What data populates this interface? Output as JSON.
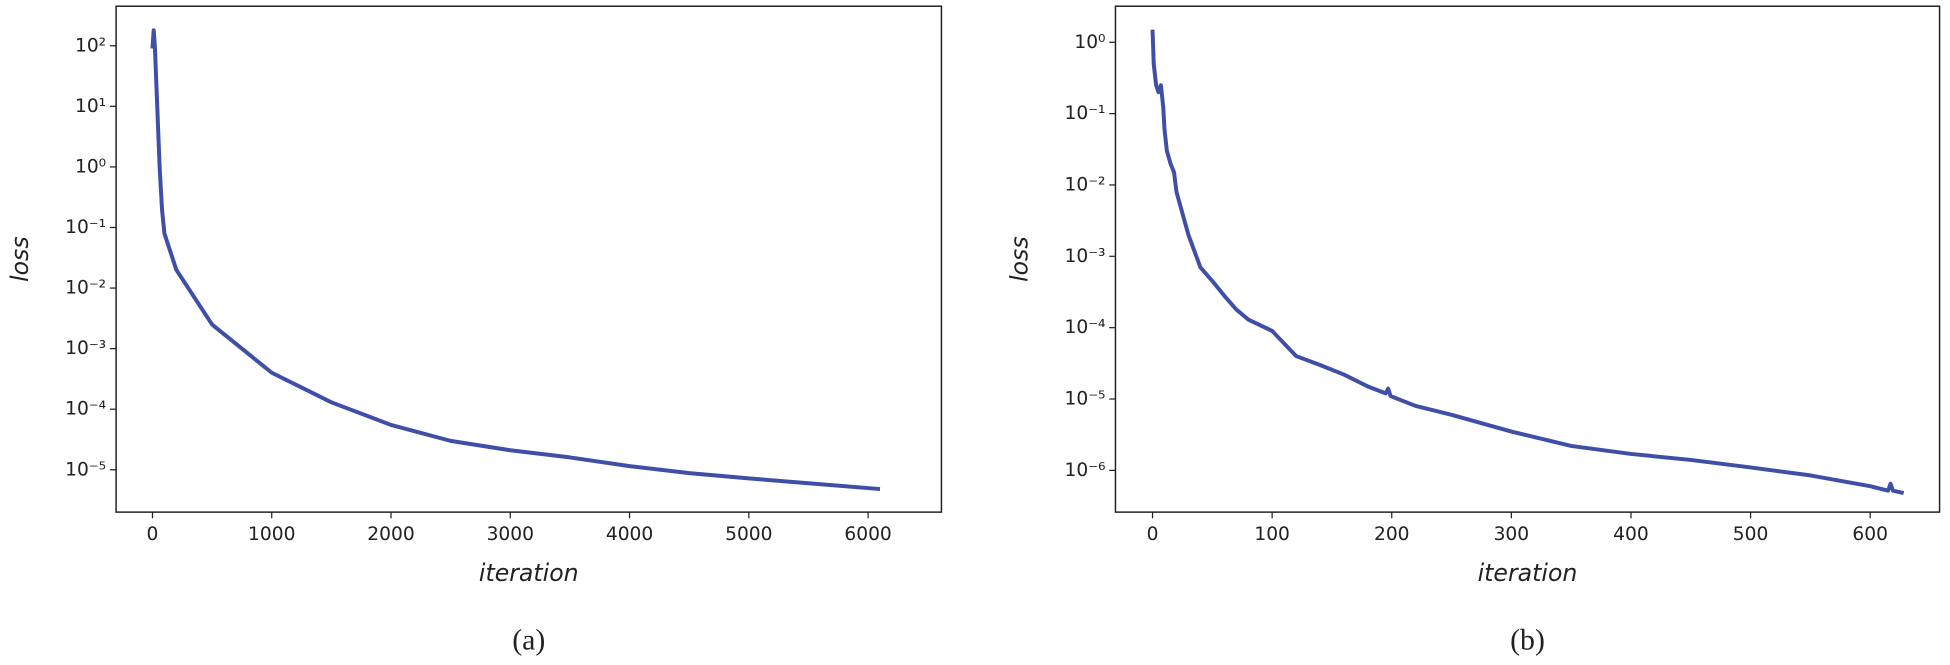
{
  "chart_data": [
    {
      "type": "line",
      "caption": "(a)",
      "xlabel": "iteration",
      "ylabel": "loss",
      "log_y": true,
      "color": "#3f4fa8",
      "xlim": [
        -305,
        6615
      ],
      "ylim": [
        2e-06,
        450
      ],
      "xticks": [
        0,
        1000,
        2000,
        3000,
        4000,
        5000,
        6000
      ],
      "yticks": [
        {
          "value": 1e-05,
          "label": "10⁻⁵"
        },
        {
          "value": 0.0001,
          "label": "10⁻⁴"
        },
        {
          "value": 0.001,
          "label": "10⁻³"
        },
        {
          "value": 0.01,
          "label": "10⁻²"
        },
        {
          "value": 0.1,
          "label": "10⁻¹"
        },
        {
          "value": 1,
          "label": "10⁰"
        },
        {
          "value": 10,
          "label": "10¹"
        },
        {
          "value": 100,
          "label": "10²"
        }
      ],
      "x": [
        0,
        10,
        20,
        40,
        60,
        80,
        100,
        150,
        200,
        300,
        400,
        500,
        700,
        1000,
        1500,
        2000,
        2500,
        3000,
        3500,
        4000,
        4500,
        5000,
        5500,
        6100
      ],
      "values": [
        90,
        180,
        100,
        10,
        1,
        0.2,
        0.08,
        0.04,
        0.02,
        0.01,
        0.005,
        0.0025,
        0.0012,
        0.0004,
        0.00013,
        5.5e-05,
        3e-05,
        2.1e-05,
        1.6e-05,
        1.15e-05,
        8.8e-06,
        7.2e-06,
        6e-06,
        4.8e-06
      ]
    },
    {
      "type": "line",
      "caption": "(b)",
      "xlabel": "iteration",
      "ylabel": "loss",
      "log_y": true,
      "color": "#3f4fa8",
      "xlim": [
        -31,
        658
      ],
      "ylim": [
        2.6e-07,
        3.2
      ],
      "xticks": [
        0,
        100,
        200,
        300,
        400,
        500,
        600
      ],
      "yticks": [
        {
          "value": 1e-06,
          "label": "10⁻⁶"
        },
        {
          "value": 1e-05,
          "label": "10⁻⁵"
        },
        {
          "value": 0.0001,
          "label": "10⁻⁴"
        },
        {
          "value": 0.001,
          "label": "10⁻³"
        },
        {
          "value": 0.01,
          "label": "10⁻²"
        },
        {
          "value": 0.1,
          "label": "10⁻¹"
        },
        {
          "value": 1,
          "label": "10⁰"
        }
      ],
      "x": [
        0,
        1,
        3,
        5,
        7,
        9,
        10,
        12,
        15,
        18,
        20,
        25,
        30,
        40,
        50,
        60,
        70,
        80,
        100,
        120,
        140,
        160,
        180,
        195,
        197,
        199,
        220,
        250,
        300,
        350,
        400,
        450,
        500,
        550,
        600,
        615,
        617,
        619,
        628
      ],
      "values": [
        1.5,
        0.5,
        0.25,
        0.2,
        0.25,
        0.12,
        0.06,
        0.03,
        0.02,
        0.015,
        0.008,
        0.004,
        0.002,
        0.0007,
        0.00045,
        0.00028,
        0.00018,
        0.00013,
        9e-05,
        4e-05,
        3e-05,
        2.2e-05,
        1.5e-05,
        1.2e-05,
        1.4e-05,
        1.1e-05,
        8e-06,
        6e-06,
        3.5e-06,
        2.2e-06,
        1.7e-06,
        1.4e-06,
        1.1e-06,
        8.5e-07,
        6e-07,
        5.2e-07,
        6.5e-07,
        5.2e-07,
        4.8e-07
      ]
    }
  ]
}
